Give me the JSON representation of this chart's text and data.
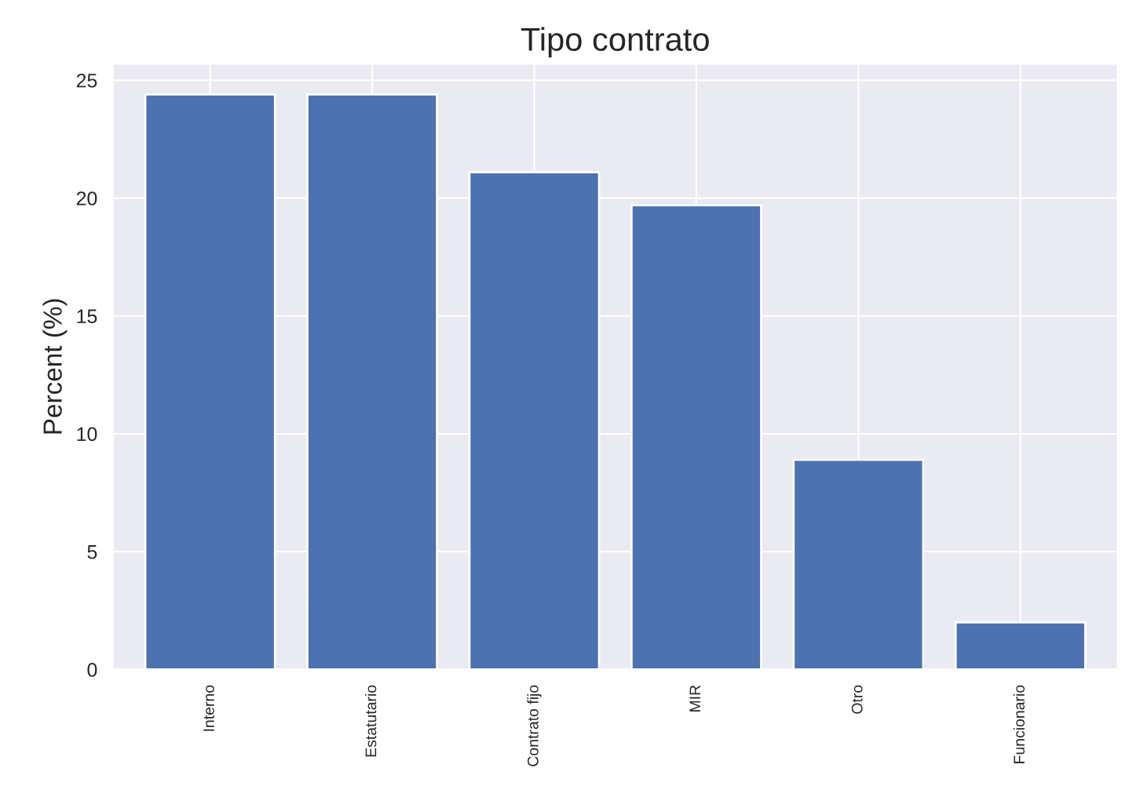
{
  "chart_data": {
    "type": "bar",
    "title": "Tipo contrato",
    "ylabel": "Percent (%)",
    "categories": [
      "Interno",
      "Estatutario",
      "Contrato fijo",
      "MIR",
      "Otro",
      "Funcionario"
    ],
    "values": [
      24.4,
      24.4,
      21.1,
      19.7,
      8.9,
      2.0
    ],
    "color": "#4c72b0",
    "ylim": [
      0,
      25.7
    ],
    "yticks": [
      0,
      5,
      10,
      15,
      20,
      25
    ],
    "grid": true
  }
}
